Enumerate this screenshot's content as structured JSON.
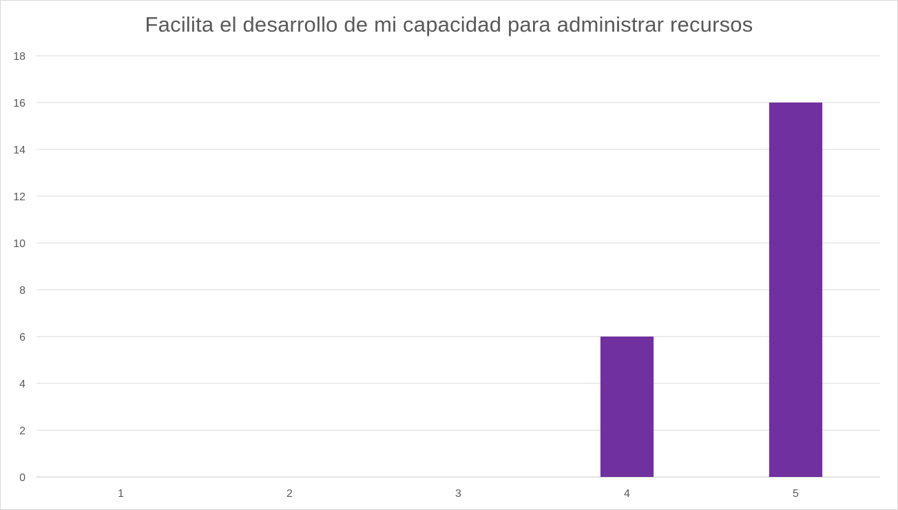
{
  "chart_data": {
    "type": "bar",
    "title": "Facilita el desarrollo de mi capacidad para administrar recursos",
    "categories": [
      "1",
      "2",
      "3",
      "4",
      "5"
    ],
    "values": [
      0,
      0,
      0,
      6,
      16
    ],
    "ylim": [
      0,
      18
    ],
    "yticks": [
      "0",
      "2",
      "4",
      "6",
      "8",
      "10",
      "12",
      "14",
      "16",
      "18"
    ],
    "xlabel": "",
    "ylabel": "",
    "grid": true,
    "legend": "none",
    "bar_color": "#7030a0",
    "grid_color": "#d9d9d9",
    "text_color": "#595959"
  }
}
